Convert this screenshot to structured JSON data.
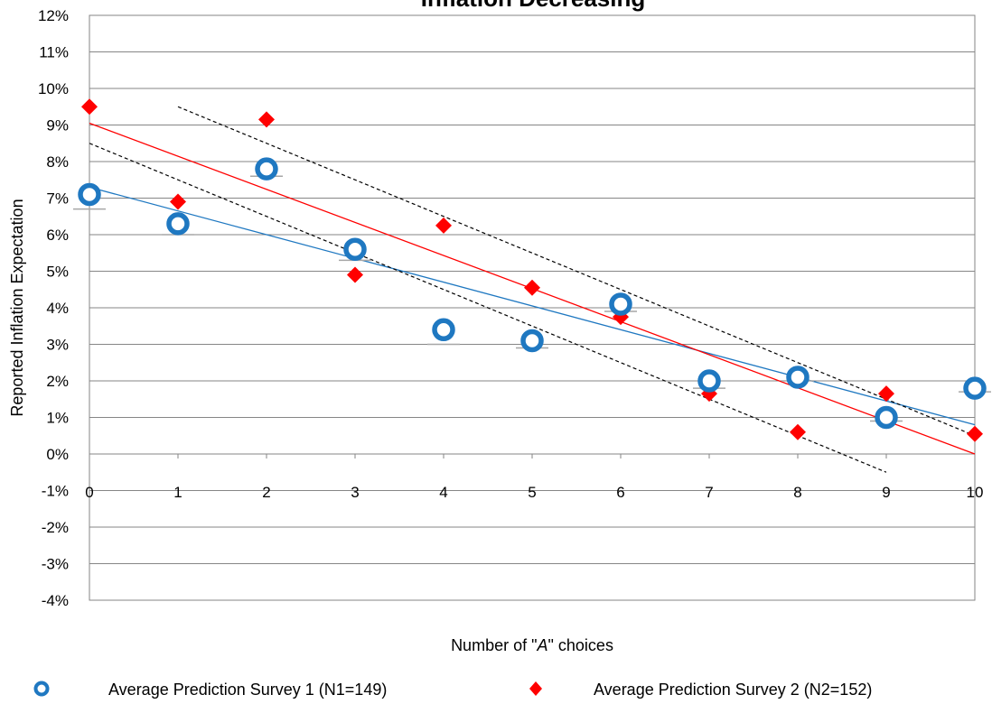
{
  "chart_data": {
    "type": "scatter",
    "title": "Inflation       Decreasing",
    "xlabel_prefix": "Number of \"",
    "xlabel_italic": "A",
    "xlabel_suffix": "\" choices",
    "ylabel": "Reported Inflation Expectation",
    "xlim": [
      0,
      10
    ],
    "ylim": [
      -4,
      12
    ],
    "x_ticks": [
      "0",
      "1",
      "2",
      "3",
      "4",
      "5",
      "6",
      "7",
      "8",
      "9",
      "10"
    ],
    "y_ticks": [
      "-4%",
      "-3%",
      "-2%",
      "-1%",
      "0%",
      "1%",
      "2%",
      "3%",
      "4%",
      "5%",
      "6%",
      "7%",
      "8%",
      "9%",
      "10%",
      "11%",
      "12%"
    ],
    "grid": "horizontal",
    "legend_position": "bottom",
    "series": [
      {
        "name": "Average Prediction Survey 1 (N1=149)",
        "marker": "ring",
        "color": "#1f78c1",
        "x": [
          0,
          1,
          2,
          3,
          4,
          5,
          6,
          7,
          8,
          9,
          10
        ],
        "y": [
          7.1,
          6.3,
          7.8,
          5.6,
          3.4,
          3.1,
          4.1,
          2.0,
          2.1,
          1.0,
          1.8
        ],
        "error_caps": [
          6.7,
          6.0,
          7.6,
          5.3,
          3.0,
          2.9,
          3.9,
          1.8,
          2.0,
          0.9,
          1.7
        ]
      },
      {
        "name": "Average Prediction Survey 2 (N2=152)",
        "marker": "diamond",
        "color": "#ff0000",
        "x": [
          0,
          1,
          2,
          3,
          4,
          5,
          6,
          7,
          8,
          9,
          10
        ],
        "y": [
          9.5,
          6.9,
          9.15,
          4.9,
          6.25,
          4.55,
          3.75,
          1.65,
          0.6,
          1.65,
          0.55
        ]
      }
    ],
    "trend_lines": [
      {
        "series": "Average Prediction Survey 1 (N1=149)",
        "color": "#1f78c1",
        "style": "solid",
        "x": [
          0,
          10
        ],
        "y": [
          7.3,
          0.8
        ]
      },
      {
        "series": "Average Prediction Survey 2 (N2=152)",
        "color": "#ff0000",
        "style": "solid",
        "x": [
          0,
          10
        ],
        "y": [
          9.05,
          0.0
        ]
      },
      {
        "color": "#000000",
        "style": "dashed",
        "x": [
          0,
          9
        ],
        "y": [
          8.5,
          -0.5
        ]
      },
      {
        "color": "#000000",
        "style": "dashed",
        "x": [
          1,
          10
        ],
        "y": [
          9.5,
          0.5
        ]
      }
    ]
  }
}
